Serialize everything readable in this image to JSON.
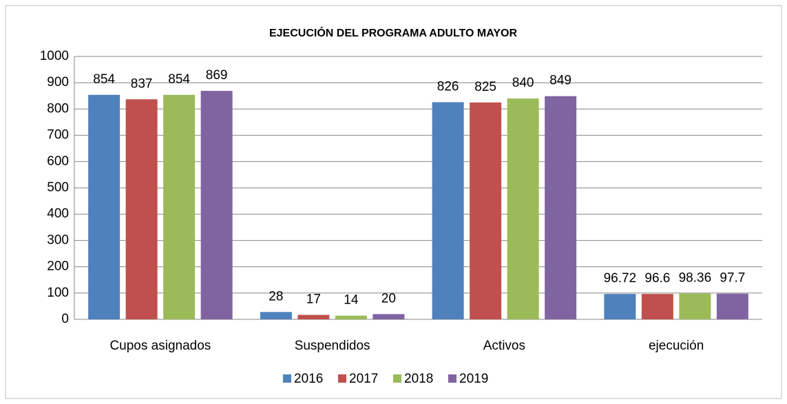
{
  "chart_data": {
    "type": "bar",
    "title": "EJECUCIÓN DEL PROGRAMA ADULTO MAYOR",
    "categories": [
      "Cupos asignados",
      "Suspendidos",
      "Activos",
      "ejecución"
    ],
    "series": [
      {
        "name": "2016",
        "color": "#4f81bd",
        "values": [
          854,
          28,
          826,
          96.72
        ]
      },
      {
        "name": "2017",
        "color": "#c0504d",
        "values": [
          837,
          17,
          825,
          96.6
        ]
      },
      {
        "name": "2018",
        "color": "#9bbb59",
        "values": [
          854,
          14,
          840,
          98.36
        ]
      },
      {
        "name": "2019",
        "color": "#8064a2",
        "values": [
          869,
          20,
          849,
          97.7
        ]
      }
    ],
    "ylim": [
      0,
      1000
    ],
    "yticks": [
      0,
      100,
      200,
      300,
      400,
      500,
      600,
      700,
      800,
      900,
      1000
    ],
    "grid": true,
    "legend": "bottom"
  }
}
